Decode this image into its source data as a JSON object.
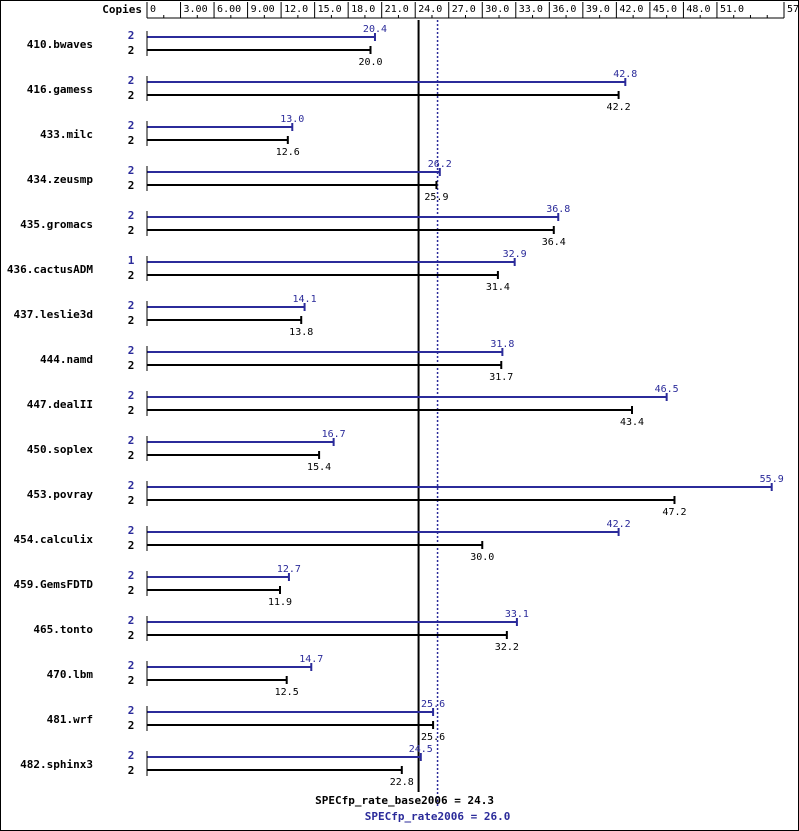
{
  "chart_data": {
    "type": "bar",
    "axis_title": "Copies",
    "ticks": [
      "0",
      "3.00",
      "6.00",
      "9.00",
      "12.0",
      "15.0",
      "18.0",
      "21.0",
      "24.0",
      "27.0",
      "30.0",
      "33.0",
      "36.0",
      "39.0",
      "42.0",
      "45.0",
      "48.0",
      "51.0",
      "57.0"
    ],
    "xlim": [
      0,
      57
    ],
    "colors": {
      "peak": "#2b2b9a",
      "base": "#000000"
    },
    "benchmarks": [
      {
        "name": "410.bwaves",
        "peak_copies": "2",
        "peak": 20.4,
        "base_copies": "2",
        "base": 20.0
      },
      {
        "name": "416.gamess",
        "peak_copies": "2",
        "peak": 42.8,
        "base_copies": "2",
        "base": 42.2
      },
      {
        "name": "433.milc",
        "peak_copies": "2",
        "peak": 13.0,
        "base_copies": "2",
        "base": 12.6
      },
      {
        "name": "434.zeusmp",
        "peak_copies": "2",
        "peak": 26.2,
        "base_copies": "2",
        "base": 25.9
      },
      {
        "name": "435.gromacs",
        "peak_copies": "2",
        "peak": 36.8,
        "base_copies": "2",
        "base": 36.4
      },
      {
        "name": "436.cactusADM",
        "peak_copies": "1",
        "peak": 32.9,
        "base_copies": "2",
        "base": 31.4
      },
      {
        "name": "437.leslie3d",
        "peak_copies": "2",
        "peak": 14.1,
        "base_copies": "2",
        "base": 13.8
      },
      {
        "name": "444.namd",
        "peak_copies": "2",
        "peak": 31.8,
        "base_copies": "2",
        "base": 31.7
      },
      {
        "name": "447.dealII",
        "peak_copies": "2",
        "peak": 46.5,
        "base_copies": "2",
        "base": 43.4
      },
      {
        "name": "450.soplex",
        "peak_copies": "2",
        "peak": 16.7,
        "base_copies": "2",
        "base": 15.4
      },
      {
        "name": "453.povray",
        "peak_copies": "2",
        "peak": 55.9,
        "base_copies": "2",
        "base": 47.2
      },
      {
        "name": "454.calculix",
        "peak_copies": "2",
        "peak": 42.2,
        "base_copies": "2",
        "base": 30.0
      },
      {
        "name": "459.GemsFDTD",
        "peak_copies": "2",
        "peak": 12.7,
        "base_copies": "2",
        "base": 11.9
      },
      {
        "name": "465.tonto",
        "peak_copies": "2",
        "peak": 33.1,
        "base_copies": "2",
        "base": 32.2
      },
      {
        "name": "470.lbm",
        "peak_copies": "2",
        "peak": 14.7,
        "base_copies": "2",
        "base": 12.5
      },
      {
        "name": "481.wrf",
        "peak_copies": "2",
        "peak": 25.6,
        "base_copies": "2",
        "base": 25.6
      },
      {
        "name": "482.sphinx3",
        "peak_copies": "2",
        "peak": 24.5,
        "base_copies": "2",
        "base": 22.8
      }
    ],
    "base_summary": {
      "label": "SPECfp_rate_base2006 = 24.3",
      "value": 24.3
    },
    "peak_summary": {
      "label": "SPECfp_rate2006 = 26.0",
      "value": 26.0
    }
  }
}
